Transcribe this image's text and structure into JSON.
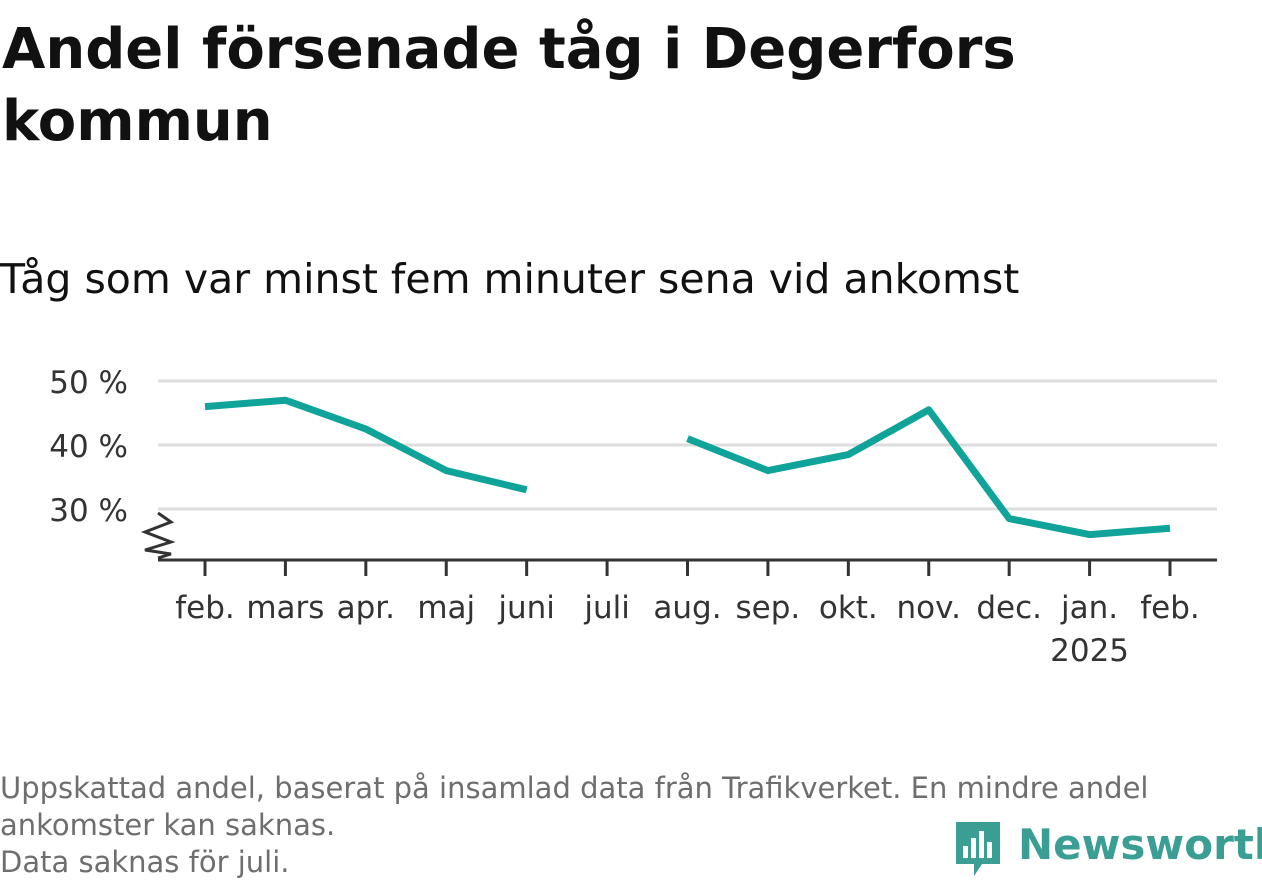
{
  "title": "Andel försenade tåg i Degerfors kommun",
  "subtitle": "Tåg som var minst fem minuter sena vid ankomst",
  "footnote": [
    "Uppskattad andel, baserat på insamlad data från Trafikverket. En mindre andel",
    "ankomster kan saknas.",
    "Data saknas för juli."
  ],
  "brand": {
    "name": "Newsworthy",
    "icon": "newsworthy-logo-icon"
  },
  "colors": {
    "line": "#10a39a",
    "grid": "#dddddd",
    "axis": "#333333",
    "text": "#333333"
  },
  "chart_data": {
    "type": "line",
    "categories": [
      "feb.",
      "mars",
      "apr.",
      "maj",
      "juni",
      "juli",
      "aug.",
      "sep.",
      "okt.",
      "nov.",
      "dec.",
      "jan.",
      "feb."
    ],
    "year_labels": [
      "",
      "",
      "",
      "",
      "",
      "",
      "",
      "",
      "",
      "",
      "",
      "2025",
      ""
    ],
    "series": [
      {
        "values": [
          46,
          47,
          42.5,
          36,
          33,
          null,
          41,
          36,
          38.5,
          45.5,
          28.5,
          26,
          27
        ]
      }
    ],
    "yticks": [
      30,
      40,
      50
    ],
    "ytick_labels": [
      "30 %",
      "40 %",
      "50 %"
    ],
    "ylim": [
      22,
      50
    ],
    "y_axis_break": true,
    "grid": true,
    "xlabel": "",
    "ylabel": ""
  }
}
